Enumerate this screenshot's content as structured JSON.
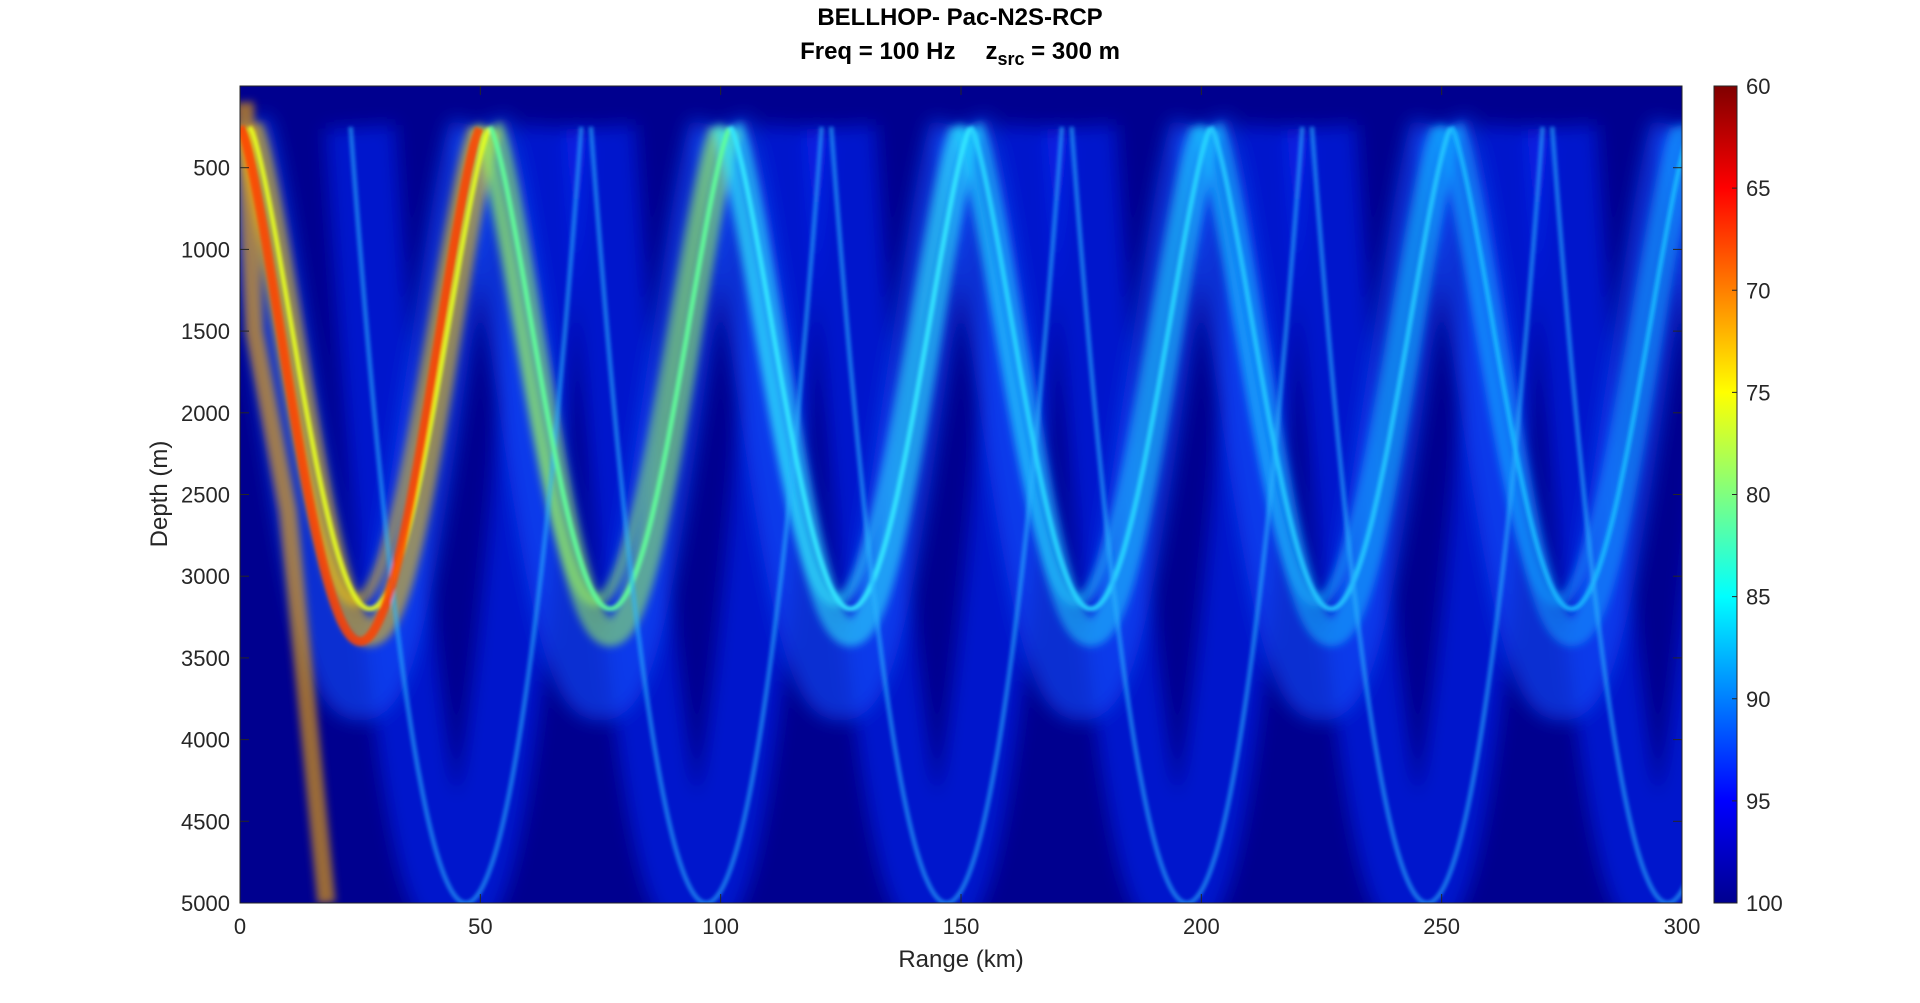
{
  "chart_data": {
    "type": "heatmap",
    "title": "BELLHOP- Pac-N2S-RCP",
    "subtitle": {
      "freq": "Freq = 100 Hz",
      "z_main": "z",
      "z_sub": "src",
      "z_value": " = 300 m"
    },
    "xlabel": "Range (km)",
    "ylabel": "Depth (m)",
    "xlim": [
      0,
      300
    ],
    "ylim": [
      0,
      5000
    ],
    "y_reversed": true,
    "xticks": [
      "0",
      "50",
      "100",
      "150",
      "200",
      "250",
      "300"
    ],
    "yticks": [
      "500",
      "1000",
      "1500",
      "2000",
      "2500",
      "3000",
      "3500",
      "4000",
      "4500",
      "5000"
    ],
    "colorbar": {
      "colormap": "jet",
      "reversed": true,
      "range": [
        60,
        100
      ],
      "ticks": [
        "60",
        "65",
        "70",
        "75",
        "80",
        "85",
        "90",
        "95",
        "100"
      ]
    },
    "features": {
      "source_depth_m": 300,
      "convergence_zone_spacing_km": 50,
      "upper_turning_depth_m": 250,
      "lower_turning_depth_m": 3200,
      "bottom_depth_m": 5000
    }
  },
  "colors": {
    "background": "#00008f",
    "axis": "#262626"
  }
}
